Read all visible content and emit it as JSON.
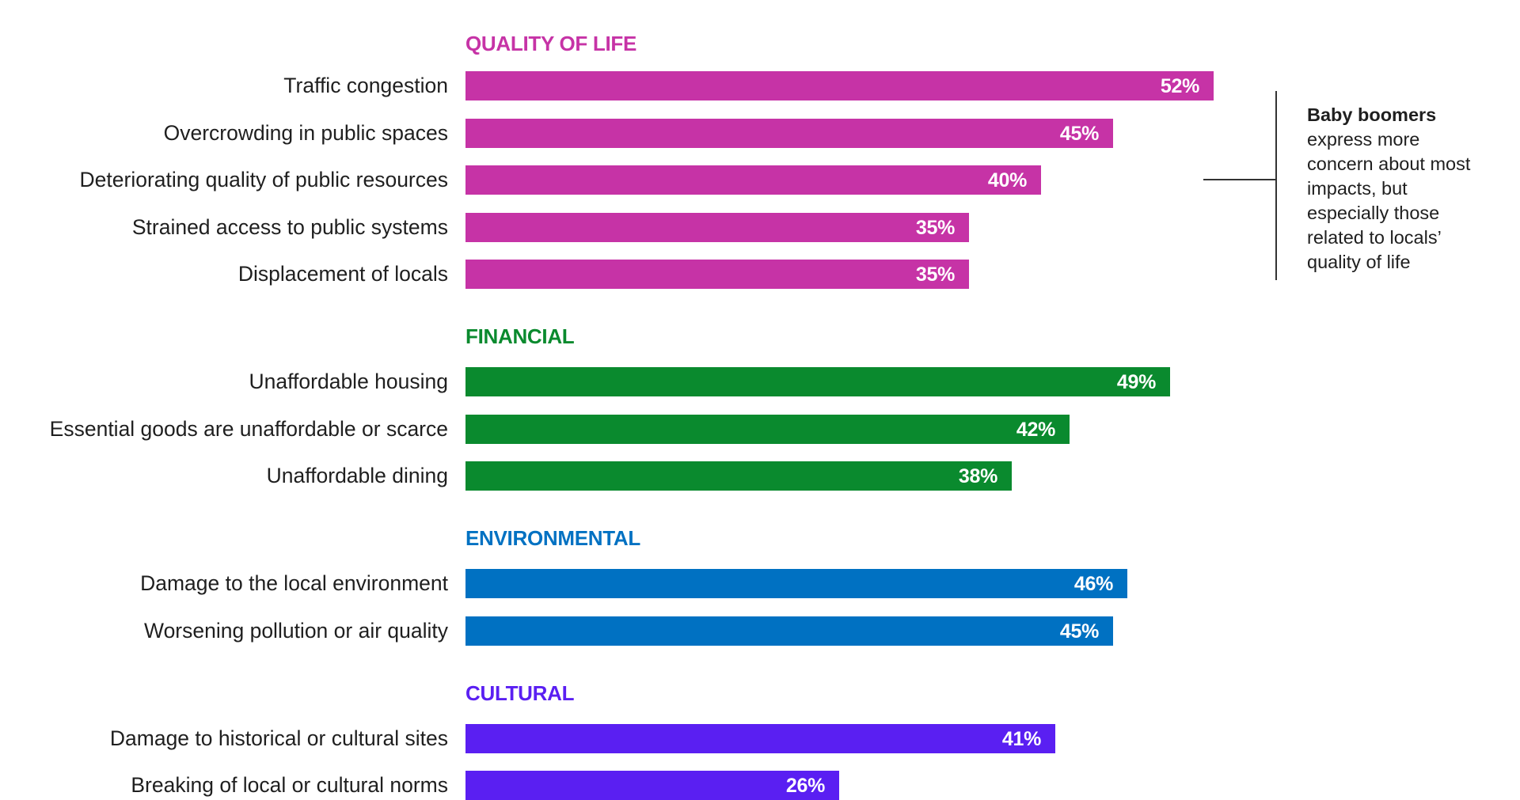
{
  "chart_data": {
    "type": "bar",
    "orientation": "horizontal",
    "xlim": [
      0,
      100
    ],
    "groups": [
      {
        "name": "QUALITY OF LIFE",
        "color": "#c633a6",
        "categories": [
          "Traffic congestion",
          "Overcrowding in public spaces",
          "Deteriorating quality of public resources",
          "Strained access to public systems",
          "Displacement of locals"
        ],
        "values": [
          52,
          45,
          40,
          35,
          35
        ],
        "labels": [
          "52%",
          "45%",
          "40%",
          "35%",
          "35%"
        ]
      },
      {
        "name": "FINANCIAL",
        "color": "#0a8a2e",
        "categories": [
          "Unaffordable housing",
          "Essential goods are unaffordable or scarce",
          "Unaffordable dining"
        ],
        "values": [
          49,
          42,
          38
        ],
        "labels": [
          "49%",
          "42%",
          "38%"
        ]
      },
      {
        "name": "ENVIRONMENTAL",
        "color": "#0071c2",
        "categories": [
          "Damage to the local environment",
          "Worsening pollution or air quality"
        ],
        "values": [
          46,
          45
        ],
        "labels": [
          "46%",
          "45%"
        ]
      },
      {
        "name": "CULTURAL",
        "color": "#5a1ff2",
        "categories": [
          "Damage to historical or cultural sites",
          "Breaking of local or cultural norms"
        ],
        "values": [
          41,
          26
        ],
        "labels": [
          "41%",
          "26%"
        ]
      }
    ],
    "annotation": {
      "bold": "Baby boomers",
      "lines": [
        "express more",
        "concern about most",
        "impacts, but",
        "especially those",
        "related to locals’",
        "quality of life"
      ]
    }
  }
}
